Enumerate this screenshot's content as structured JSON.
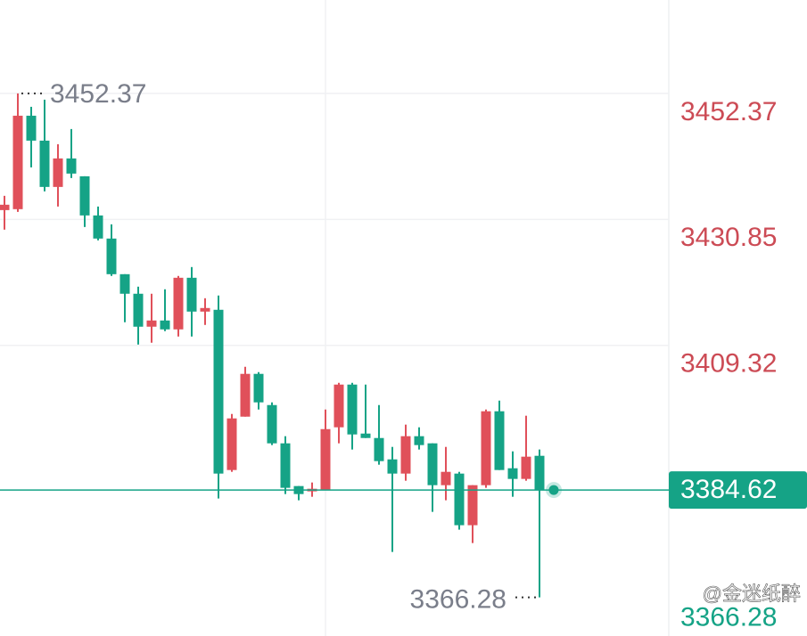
{
  "chart_data": {
    "type": "candlestick",
    "ylim": [
      3359.67,
      3468.34
    ],
    "yticks": [
      3452.37,
      3430.85,
      3409.32
    ],
    "up_color": "#e0505a",
    "down_color": "#15a386",
    "open": [
      3432.44,
      3432.6,
      3448.57,
      3444.31,
      3436.4,
      3441.27,
      3438.22,
      3431.53,
      3427.58,
      3421.49,
      3418.15,
      3412.52,
      3413.58,
      3412.06,
      3420.88,
      3415.1,
      3415.41,
      3388.03,
      3397.15,
      3404.46,
      3399.13,
      3392.59,
      3385.29,
      3384.38,
      3384.68,
      3395.33,
      3402.63,
      3394.26,
      3393.5,
      3389.85,
      3387.42,
      3393.81,
      3392.59,
      3385.44,
      3387.42,
      3378.6,
      3385.44,
      3398.07,
      3388.33,
      3386.51,
      3390.46
    ],
    "high": [
      3434.88,
      3452.37,
      3450.09,
      3451.31,
      3443.7,
      3446.29,
      3438.22,
      3433.05,
      3430.01,
      3421.49,
      3419.36,
      3418.15,
      3418.91,
      3421.19,
      3422.71,
      3417.38,
      3417.84,
      3397.61,
      3405.67,
      3404.76,
      3399.59,
      3393.81,
      3385.29,
      3385.9,
      3398.37,
      3402.93,
      3402.93,
      3402.63,
      3399.13,
      3391.98,
      3395.79,
      3395.33,
      3392.59,
      3391.98,
      3387.72,
      3385.44,
      3398.37,
      3399.89,
      3391.22,
      3397.31,
      3391.53
    ],
    "low": [
      3429.1,
      3432.14,
      3439.74,
      3435.64,
      3433.05,
      3437.92,
      3429.55,
      3427.27,
      3421.19,
      3413.28,
      3409.47,
      3409.78,
      3411.76,
      3410.84,
      3410.84,
      3412.82,
      3383.16,
      3387.72,
      3397.15,
      3398.37,
      3392.29,
      3383.92,
      3382.86,
      3383.46,
      3384.68,
      3392.59,
      3391.53,
      3393.5,
      3388.94,
      3374.03,
      3386.2,
      3391.53,
      3380.88,
      3382.86,
      3377.84,
      3375.55,
      3384.99,
      3388.03,
      3383.46,
      3386.2,
      3366.28
    ],
    "close": [
      3433.36,
      3448.57,
      3444.31,
      3436.4,
      3441.27,
      3438.68,
      3431.53,
      3427.58,
      3421.49,
      3418.15,
      3412.52,
      3413.58,
      3412.06,
      3420.88,
      3415.1,
      3415.71,
      3387.42,
      3396.85,
      3404.46,
      3399.59,
      3392.59,
      3384.99,
      3383.92,
      3384.83,
      3395.02,
      3402.63,
      3394.11,
      3393.5,
      3389.55,
      3387.42,
      3393.81,
      3392.29,
      3385.44,
      3387.72,
      3378.6,
      3385.44,
      3398.07,
      3388.03,
      3386.51,
      3390.31,
      3384.62
    ],
    "last_price": 3384.62,
    "high_marker": 3452.37,
    "low_marker": 3366.28,
    "watermark": "@金迷纸醉"
  }
}
